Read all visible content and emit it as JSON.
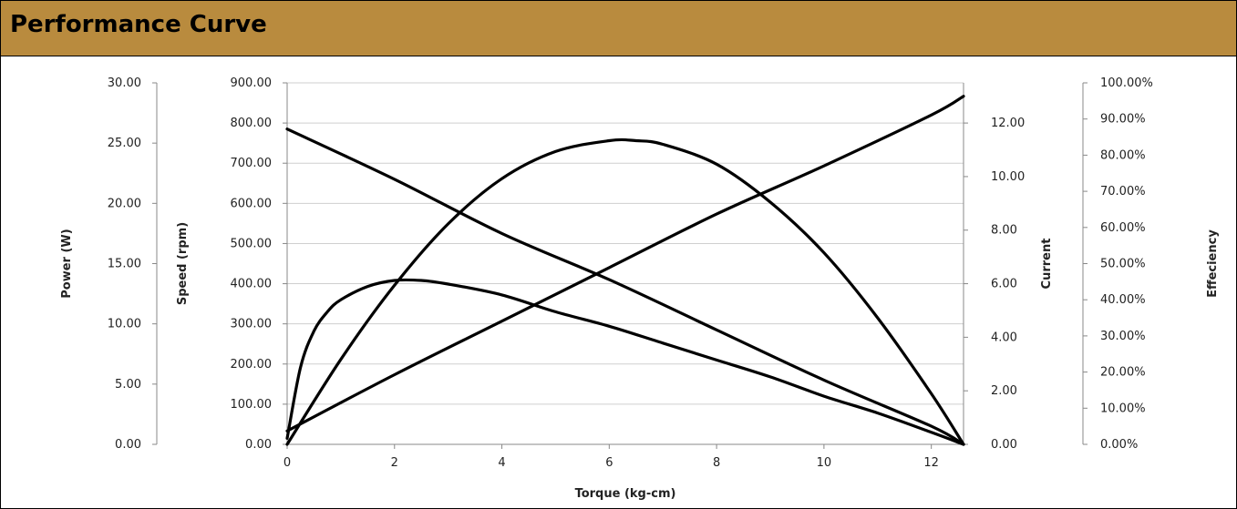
{
  "header": {
    "title": "Performance Curve"
  },
  "chart_data": {
    "type": "line",
    "xlabel": "Torque (kg-cm)",
    "xlim": [
      0,
      12.6
    ],
    "xticks": [
      "0",
      "2",
      "4",
      "6",
      "8",
      "10",
      "12"
    ],
    "axes": {
      "power": {
        "label": "Power (W)",
        "ylim": [
          0,
          30
        ],
        "ticks": [
          "0.00",
          "5.00",
          "10.00",
          "15.00",
          "20.00",
          "25.00",
          "30.00"
        ]
      },
      "speed": {
        "label": "Speed (rpm)",
        "ylim": [
          0,
          900
        ],
        "ticks": [
          "0.00",
          "100.00",
          "200.00",
          "300.00",
          "400.00",
          "500.00",
          "600.00",
          "700.00",
          "800.00",
          "900.00"
        ]
      },
      "current": {
        "label": "Current",
        "ylim": [
          0,
          13.5
        ],
        "ticks": [
          "0.00",
          "2.00",
          "4.00",
          "6.00",
          "8.00",
          "10.00",
          "12.00"
        ]
      },
      "efficiency": {
        "label": "Effeciency",
        "ylim": [
          0,
          100
        ],
        "ticks": [
          "0.00%",
          "10.00%",
          "20.00%",
          "30.00%",
          "40.00%",
          "50.00%",
          "60.00%",
          "70.00%",
          "80.00%",
          "90.00%",
          "100.00%"
        ]
      }
    },
    "grid": true,
    "legend": "none",
    "series": [
      {
        "axis": "speed",
        "x": [
          0,
          2,
          4,
          6,
          8,
          10,
          12,
          12.6
        ],
        "y": [
          785,
          660,
          525,
          410,
          285,
          160,
          45,
          0
        ]
      },
      {
        "axis": "current",
        "x": [
          0,
          2,
          4,
          6,
          8,
          10,
          12,
          12.6
        ],
        "y": [
          0.5,
          2.6,
          4.6,
          6.6,
          8.6,
          10.4,
          12.3,
          13.0
        ]
      },
      {
        "axis": "power",
        "x": [
          0,
          0.25,
          0.5,
          0.75,
          1,
          1.5,
          2,
          2.5,
          3,
          4,
          5,
          6,
          7,
          8,
          9,
          10,
          11,
          12,
          12.6
        ],
        "y": [
          0.5,
          6.4,
          9.4,
          11.0,
          12.0,
          13.1,
          13.6,
          13.6,
          13.3,
          12.4,
          11.0,
          9.8,
          8.4,
          7.0,
          5.6,
          4.0,
          2.6,
          1.0,
          0
        ]
      },
      {
        "axis": "efficiency",
        "x": [
          0,
          1,
          2,
          3,
          4,
          5,
          6,
          6.5,
          7,
          8,
          9,
          10,
          11,
          12,
          12.6
        ],
        "y": [
          0,
          23.5,
          44,
          61,
          73.5,
          81,
          84,
          84,
          83,
          77.5,
          67,
          53,
          35,
          14,
          0
        ]
      }
    ]
  }
}
